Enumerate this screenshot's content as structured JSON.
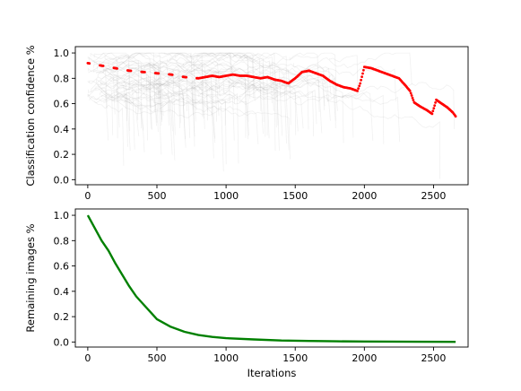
{
  "chart_data": [
    {
      "type": "scatter",
      "ylabel": "Classification confidence %",
      "xlabel": "",
      "xlim": [
        -90,
        2750
      ],
      "ylim": [
        -0.04,
        1.05
      ],
      "xticks": [
        "0",
        "500",
        "1000",
        "1500",
        "2000",
        "2500"
      ],
      "yticks": [
        "0.0",
        "0.2",
        "0.4",
        "0.6",
        "0.8",
        "1.0"
      ],
      "grid": false,
      "background_traces": "many faint grey per-image confidence traces, dense near x=0-1000",
      "series": [
        {
          "color": "#ff0000",
          "marker": "dot",
          "points": [
            [
              0,
              0.92
            ],
            [
              100,
              0.9
            ],
            [
              200,
              0.88
            ],
            [
              300,
              0.86
            ],
            [
              400,
              0.85
            ],
            [
              500,
              0.84
            ],
            [
              600,
              0.83
            ],
            [
              700,
              0.81
            ],
            [
              800,
              0.8
            ],
            [
              850,
              0.81
            ],
            [
              900,
              0.82
            ],
            [
              950,
              0.81
            ],
            [
              1000,
              0.82
            ],
            [
              1050,
              0.83
            ],
            [
              1100,
              0.82
            ],
            [
              1150,
              0.82
            ],
            [
              1200,
              0.81
            ],
            [
              1250,
              0.8
            ],
            [
              1300,
              0.81
            ],
            [
              1350,
              0.79
            ],
            [
              1400,
              0.78
            ],
            [
              1450,
              0.76
            ],
            [
              1500,
              0.8
            ],
            [
              1550,
              0.85
            ],
            [
              1600,
              0.86
            ],
            [
              1650,
              0.84
            ],
            [
              1700,
              0.82
            ],
            [
              1750,
              0.78
            ],
            [
              1800,
              0.75
            ],
            [
              1850,
              0.73
            ],
            [
              1900,
              0.72
            ],
            [
              1950,
              0.7
            ],
            [
              1970,
              0.76
            ],
            [
              2000,
              0.89
            ],
            [
              2050,
              0.88
            ],
            [
              2100,
              0.86
            ],
            [
              2150,
              0.84
            ],
            [
              2200,
              0.82
            ],
            [
              2250,
              0.8
            ],
            [
              2300,
              0.74
            ],
            [
              2330,
              0.7
            ],
            [
              2360,
              0.61
            ],
            [
              2400,
              0.58
            ],
            [
              2450,
              0.55
            ],
            [
              2490,
              0.52
            ],
            [
              2520,
              0.63
            ],
            [
              2560,
              0.6
            ],
            [
              2600,
              0.57
            ],
            [
              2640,
              0.53
            ],
            [
              2660,
              0.5
            ]
          ]
        }
      ]
    },
    {
      "type": "line",
      "ylabel": "Remaining images %",
      "xlabel": "Iterations",
      "xlim": [
        -90,
        2750
      ],
      "ylim": [
        -0.04,
        1.05
      ],
      "xticks": [
        "0",
        "500",
        "1000",
        "1500",
        "2000",
        "2500"
      ],
      "yticks": [
        "0.0",
        "0.2",
        "0.4",
        "0.6",
        "0.8",
        "1.0"
      ],
      "grid": false,
      "series": [
        {
          "color": "#008000",
          "points": [
            [
              0,
              1.0
            ],
            [
              50,
              0.9
            ],
            [
              100,
              0.8
            ],
            [
              150,
              0.72
            ],
            [
              200,
              0.62
            ],
            [
              250,
              0.53
            ],
            [
              300,
              0.44
            ],
            [
              350,
              0.36
            ],
            [
              400,
              0.3
            ],
            [
              450,
              0.24
            ],
            [
              500,
              0.18
            ],
            [
              600,
              0.12
            ],
            [
              700,
              0.08
            ],
            [
              800,
              0.055
            ],
            [
              900,
              0.04
            ],
            [
              1000,
              0.03
            ],
            [
              1200,
              0.02
            ],
            [
              1400,
              0.012
            ],
            [
              1600,
              0.008
            ],
            [
              1800,
              0.005
            ],
            [
              2000,
              0.004
            ],
            [
              2200,
              0.003
            ],
            [
              2400,
              0.002
            ],
            [
              2660,
              0.001
            ]
          ]
        }
      ]
    }
  ]
}
